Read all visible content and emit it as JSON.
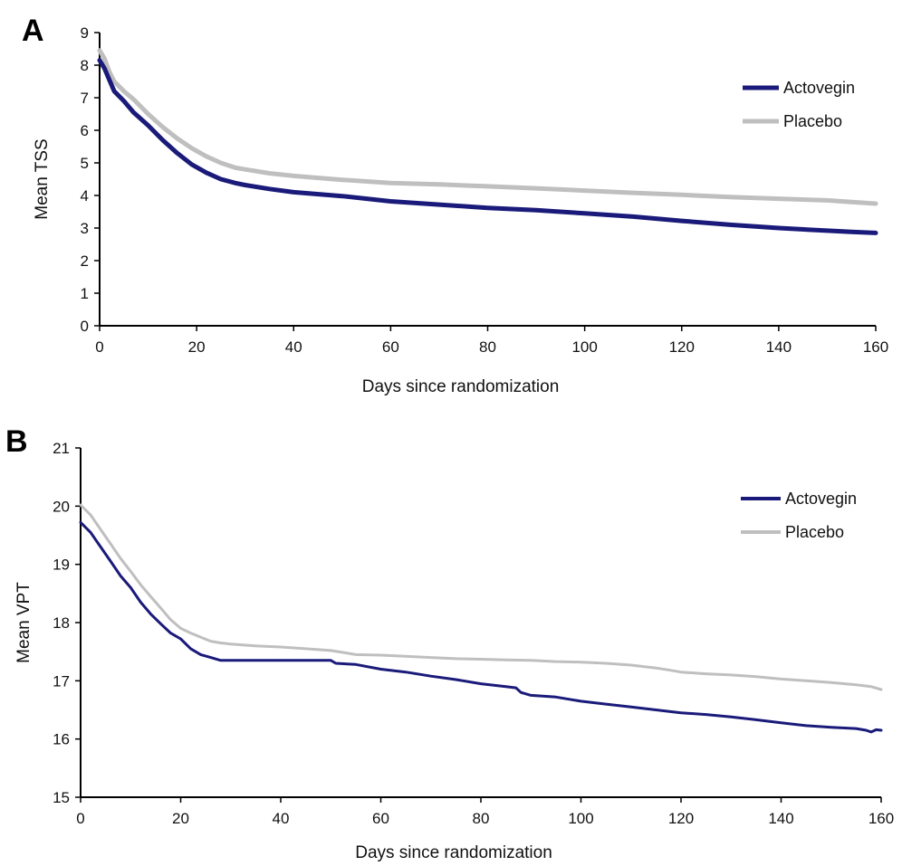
{
  "chart_data": [
    {
      "panel": "A",
      "type": "line",
      "xlabel": "Days since randomization",
      "ylabel": "Mean TSS",
      "xlim": [
        0,
        160
      ],
      "ylim": [
        0,
        9
      ],
      "xticks": [
        0,
        20,
        40,
        60,
        80,
        100,
        120,
        140,
        160
      ],
      "yticks": [
        0,
        1,
        2,
        3,
        4,
        5,
        6,
        7,
        8,
        9
      ],
      "grid": false,
      "legend_position": "top-right",
      "series": [
        {
          "name": "Actovegin",
          "color": "#1a1a7a",
          "points": [
            [
              0,
              8.15
            ],
            [
              1,
              7.9
            ],
            [
              2,
              7.55
            ],
            [
              3,
              7.2
            ],
            [
              5,
              6.9
            ],
            [
              7,
              6.55
            ],
            [
              10,
              6.15
            ],
            [
              13,
              5.7
            ],
            [
              16,
              5.3
            ],
            [
              19,
              4.95
            ],
            [
              22,
              4.7
            ],
            [
              25,
              4.5
            ],
            [
              28,
              4.38
            ],
            [
              30,
              4.32
            ],
            [
              35,
              4.2
            ],
            [
              40,
              4.1
            ],
            [
              50,
              3.98
            ],
            [
              60,
              3.82
            ],
            [
              70,
              3.72
            ],
            [
              80,
              3.62
            ],
            [
              90,
              3.55
            ],
            [
              100,
              3.45
            ],
            [
              110,
              3.35
            ],
            [
              120,
              3.22
            ],
            [
              130,
              3.1
            ],
            [
              140,
              3.0
            ],
            [
              150,
              2.92
            ],
            [
              155,
              2.88
            ],
            [
              160,
              2.85
            ]
          ]
        },
        {
          "name": "Placebo",
          "color": "#bfbfbf",
          "points": [
            [
              0,
              8.45
            ],
            [
              1,
              8.2
            ],
            [
              2,
              7.8
            ],
            [
              3,
              7.5
            ],
            [
              5,
              7.2
            ],
            [
              7,
              6.95
            ],
            [
              10,
              6.5
            ],
            [
              13,
              6.1
            ],
            [
              16,
              5.75
            ],
            [
              19,
              5.45
            ],
            [
              22,
              5.2
            ],
            [
              25,
              5.0
            ],
            [
              28,
              4.85
            ],
            [
              30,
              4.8
            ],
            [
              35,
              4.68
            ],
            [
              40,
              4.6
            ],
            [
              50,
              4.48
            ],
            [
              60,
              4.38
            ],
            [
              70,
              4.34
            ],
            [
              80,
              4.28
            ],
            [
              90,
              4.22
            ],
            [
              100,
              4.15
            ],
            [
              110,
              4.08
            ],
            [
              120,
              4.02
            ],
            [
              130,
              3.95
            ],
            [
              140,
              3.9
            ],
            [
              150,
              3.85
            ],
            [
              155,
              3.8
            ],
            [
              160,
              3.75
            ]
          ]
        }
      ]
    },
    {
      "panel": "B",
      "type": "line",
      "xlabel": "Days since randomization",
      "ylabel": "Mean VPT",
      "xlim": [
        0,
        160
      ],
      "ylim": [
        15,
        21
      ],
      "xticks": [
        0,
        20,
        40,
        60,
        80,
        100,
        120,
        140,
        160
      ],
      "yticks": [
        15,
        16,
        17,
        18,
        19,
        20,
        21
      ],
      "grid": false,
      "legend_position": "top-right",
      "series": [
        {
          "name": "Actovegin",
          "color": "#1a1a7a",
          "points": [
            [
              0,
              19.72
            ],
            [
              2,
              19.55
            ],
            [
              4,
              19.3
            ],
            [
              6,
              19.05
            ],
            [
              8,
              18.8
            ],
            [
              10,
              18.6
            ],
            [
              12,
              18.35
            ],
            [
              14,
              18.15
            ],
            [
              16,
              17.98
            ],
            [
              18,
              17.82
            ],
            [
              20,
              17.72
            ],
            [
              22,
              17.55
            ],
            [
              24,
              17.45
            ],
            [
              26,
              17.4
            ],
            [
              28,
              17.35
            ],
            [
              30,
              17.35
            ],
            [
              40,
              17.35
            ],
            [
              50,
              17.35
            ],
            [
              51,
              17.3
            ],
            [
              55,
              17.28
            ],
            [
              60,
              17.2
            ],
            [
              65,
              17.15
            ],
            [
              70,
              17.08
            ],
            [
              75,
              17.02
            ],
            [
              80,
              16.95
            ],
            [
              85,
              16.9
            ],
            [
              87,
              16.88
            ],
            [
              88,
              16.8
            ],
            [
              90,
              16.75
            ],
            [
              95,
              16.72
            ],
            [
              100,
              16.65
            ],
            [
              105,
              16.6
            ],
            [
              110,
              16.55
            ],
            [
              115,
              16.5
            ],
            [
              120,
              16.45
            ],
            [
              125,
              16.42
            ],
            [
              130,
              16.38
            ],
            [
              135,
              16.33
            ],
            [
              140,
              16.28
            ],
            [
              145,
              16.23
            ],
            [
              150,
              16.2
            ],
            [
              155,
              16.18
            ],
            [
              157,
              16.15
            ],
            [
              158,
              16.12
            ],
            [
              159,
              16.16
            ],
            [
              160,
              16.15
            ]
          ]
        },
        {
          "name": "Placebo",
          "color": "#bfbfbf",
          "points": [
            [
              0,
              20.02
            ],
            [
              2,
              19.85
            ],
            [
              4,
              19.6
            ],
            [
              6,
              19.35
            ],
            [
              8,
              19.1
            ],
            [
              10,
              18.88
            ],
            [
              12,
              18.65
            ],
            [
              14,
              18.45
            ],
            [
              16,
              18.25
            ],
            [
              18,
              18.05
            ],
            [
              20,
              17.9
            ],
            [
              22,
              17.82
            ],
            [
              24,
              17.75
            ],
            [
              26,
              17.68
            ],
            [
              28,
              17.65
            ],
            [
              30,
              17.63
            ],
            [
              35,
              17.6
            ],
            [
              40,
              17.58
            ],
            [
              45,
              17.55
            ],
            [
              50,
              17.52
            ],
            [
              53,
              17.48
            ],
            [
              55,
              17.45
            ],
            [
              60,
              17.44
            ],
            [
              65,
              17.42
            ],
            [
              70,
              17.4
            ],
            [
              75,
              17.38
            ],
            [
              80,
              17.37
            ],
            [
              85,
              17.36
            ],
            [
              90,
              17.35
            ],
            [
              95,
              17.33
            ],
            [
              100,
              17.32
            ],
            [
              105,
              17.3
            ],
            [
              110,
              17.27
            ],
            [
              115,
              17.22
            ],
            [
              118,
              17.18
            ],
            [
              120,
              17.15
            ],
            [
              125,
              17.12
            ],
            [
              130,
              17.1
            ],
            [
              135,
              17.07
            ],
            [
              140,
              17.03
            ],
            [
              145,
              17.0
            ],
            [
              150,
              16.97
            ],
            [
              155,
              16.93
            ],
            [
              158,
              16.9
            ],
            [
              160,
              16.85
            ]
          ]
        }
      ]
    }
  ]
}
